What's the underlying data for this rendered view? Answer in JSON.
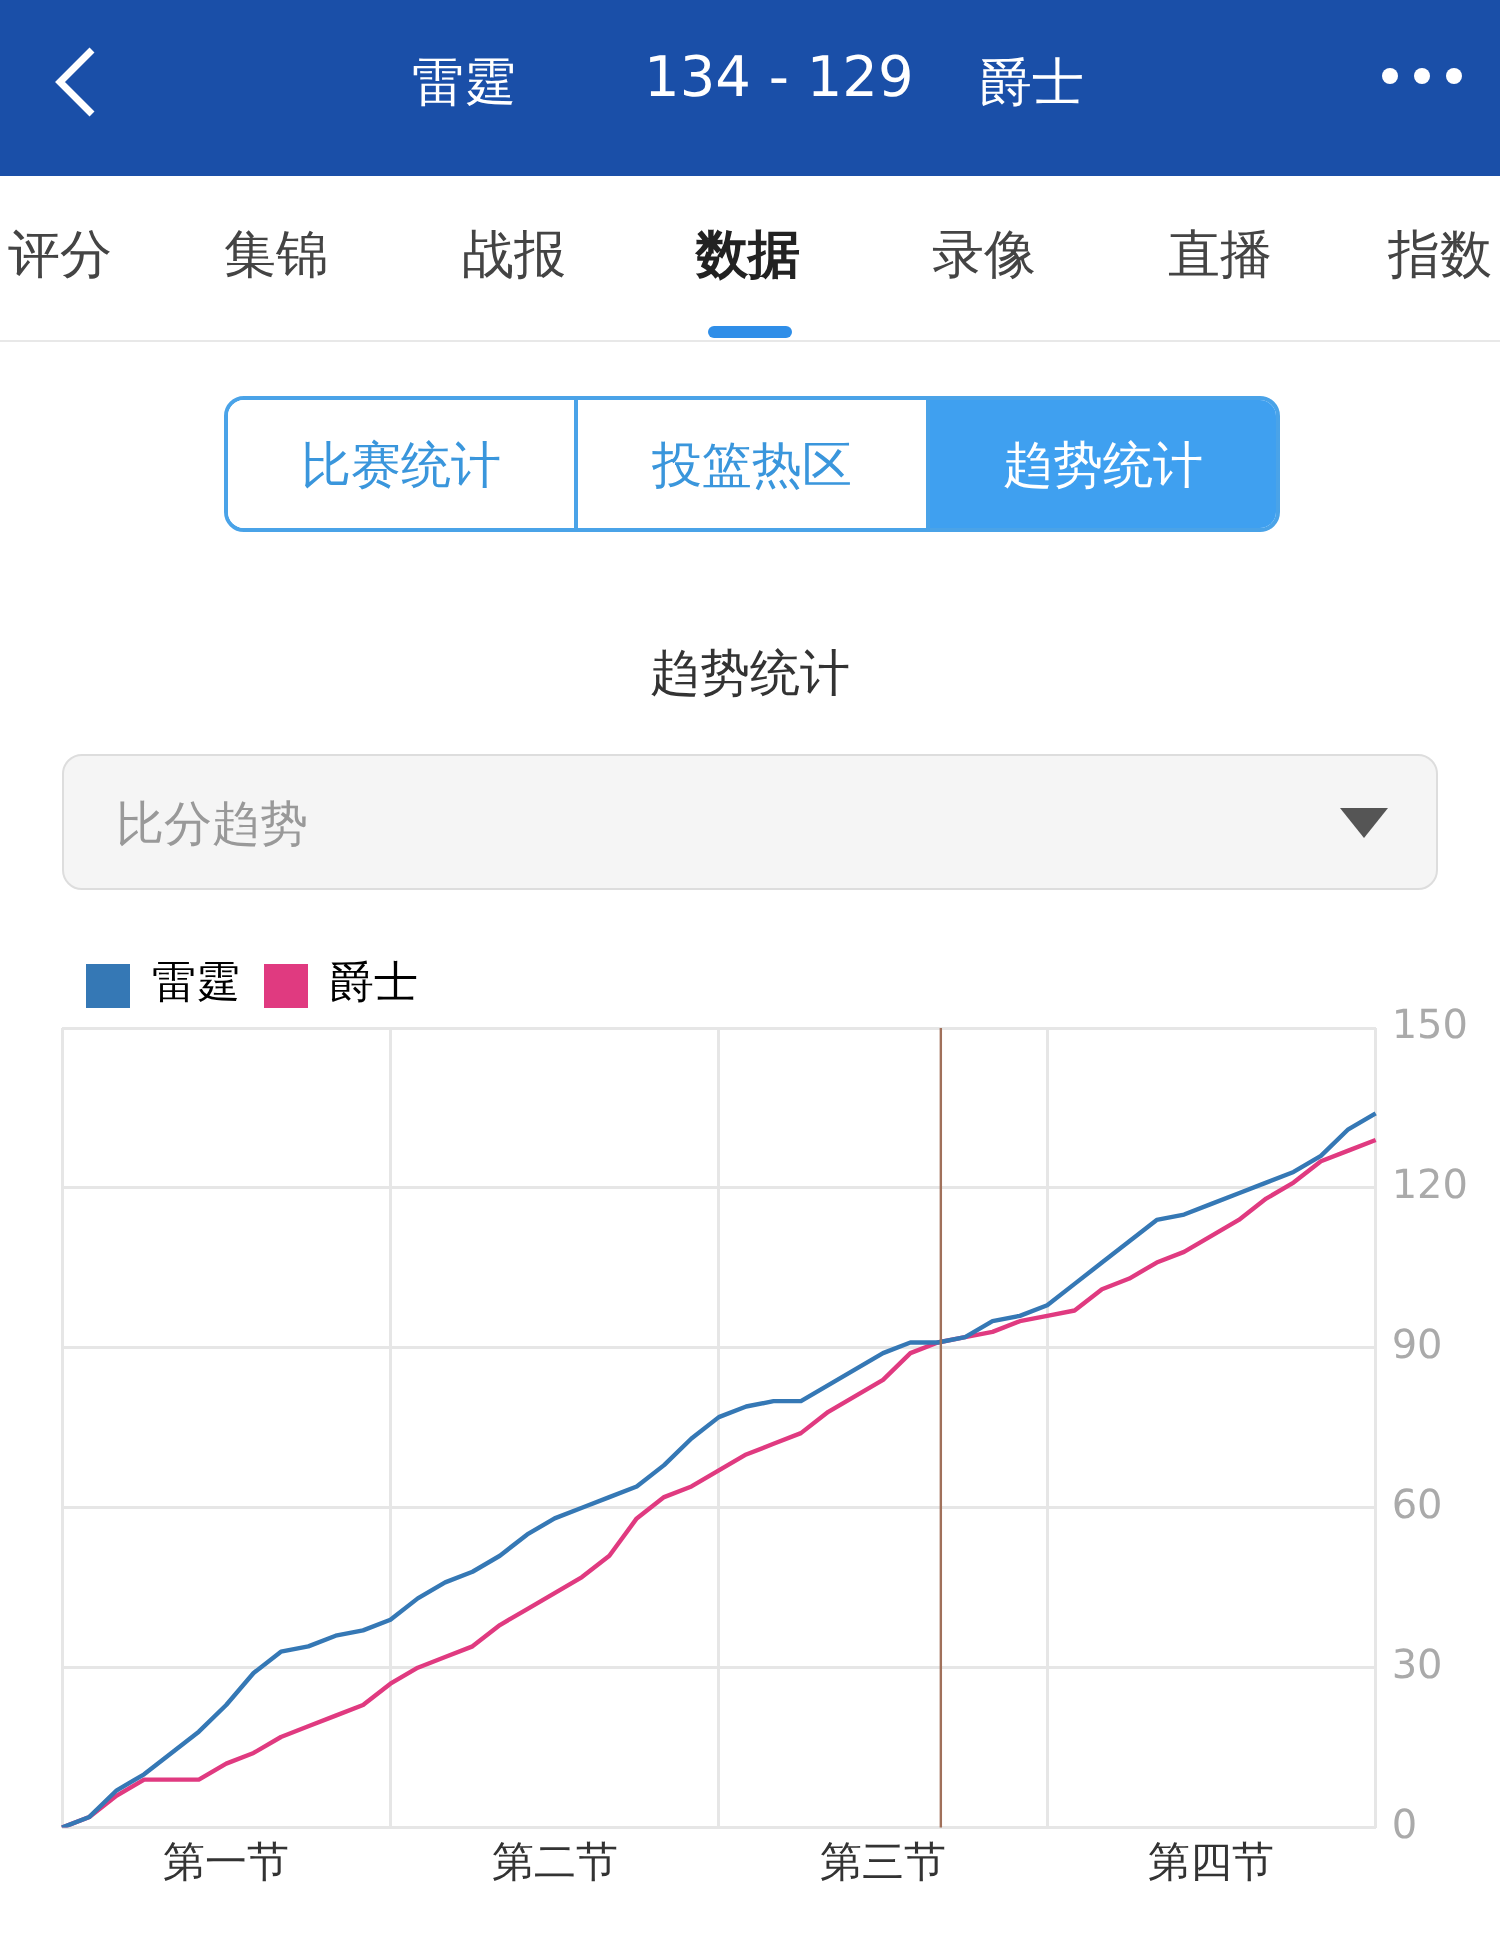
{
  "chart_data": {
    "type": "line",
    "title": "趋势统计",
    "annotations": [
      "雷霆",
      "134 - 129",
      "爵士",
      "评分",
      "集锦",
      "战报",
      "数据",
      "录像",
      "直播",
      "指数",
      "比赛统计",
      "投篮热区",
      "趋势统计",
      "比分趋势"
    ],
    "categories": [
      null,
      null,
      null,
      null,
      null,
      null,
      "第一节",
      null,
      null,
      null,
      null,
      null,
      null,
      null,
      null,
      null,
      null,
      null,
      "第二节",
      null,
      null,
      null,
      null,
      null,
      null,
      null,
      null,
      null,
      null,
      null,
      "第三节",
      null,
      null,
      null,
      null,
      null,
      null,
      null,
      null,
      null,
      null,
      null,
      "第四节",
      null,
      null,
      null,
      null,
      null,
      null
    ],
    "series": [
      {
        "name": "雷霆",
        "color": "#3578b5",
        "values": [
          0,
          2,
          7,
          10,
          14,
          18,
          23,
          29,
          33,
          34,
          36,
          37,
          39,
          43,
          46,
          48,
          51,
          55,
          58,
          60,
          62,
          64,
          68,
          73,
          77,
          79,
          80,
          80,
          83,
          86,
          89,
          91,
          91,
          92,
          95,
          96,
          98,
          102,
          106,
          110,
          114,
          115,
          117,
          119,
          121,
          123,
          126,
          131,
          134
        ]
      },
      {
        "name": "爵士",
        "color": "#e03a80",
        "values": [
          0,
          2,
          6,
          9,
          9,
          9,
          12,
          14,
          17,
          19,
          21,
          23,
          27,
          30,
          32,
          34,
          38,
          41,
          44,
          47,
          51,
          58,
          62,
          64,
          67,
          70,
          72,
          74,
          78,
          81,
          84,
          89,
          91,
          92,
          93,
          95,
          96,
          97,
          101,
          103,
          106,
          108,
          111,
          114,
          118,
          121,
          125,
          127,
          129
        ]
      }
    ],
    "ylim": [
      0,
      150
    ],
    "yticks": [
      0,
      30,
      60,
      90,
      120,
      150
    ],
    "grid": true,
    "legend": "top left",
    "marker": "none",
    "line_style": "solid"
  }
}
